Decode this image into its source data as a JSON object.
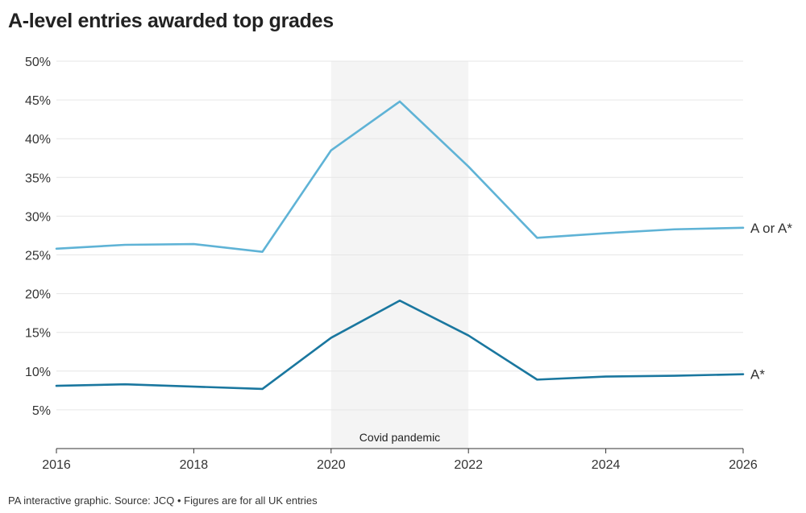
{
  "title": "A-level entries awarded top grades",
  "footer": "PA interactive graphic. Source: JCQ • Figures are for all UK entries",
  "colors": {
    "a_or_astar": "#5fb3d6",
    "astar": "#1a779f",
    "band": "#f4f4f4",
    "grid": "#e6e6e6",
    "axis": "#333333"
  },
  "chart_data": {
    "type": "line",
    "title": "A-level entries awarded top grades",
    "xlabel": "",
    "ylabel": "",
    "x": [
      2016,
      2017,
      2018,
      2019,
      2020,
      2021,
      2022,
      2023,
      2024,
      2025,
      2026
    ],
    "xlim": [
      2016,
      2026
    ],
    "ylim": [
      0,
      50
    ],
    "x_ticks": [
      "2016",
      "2018",
      "2020",
      "2022",
      "2024",
      "2026"
    ],
    "y_ticks": [
      "5%",
      "10%",
      "15%",
      "20%",
      "25%",
      "30%",
      "35%",
      "40%",
      "45%",
      "50%"
    ],
    "grid": true,
    "series": [
      {
        "name": "A or A*",
        "values": [
          25.8,
          26.3,
          26.4,
          25.4,
          38.5,
          44.8,
          36.4,
          27.2,
          27.8,
          28.3,
          28.5
        ]
      },
      {
        "name": "A*",
        "values": [
          8.1,
          8.3,
          8.0,
          7.7,
          14.3,
          19.1,
          14.6,
          8.9,
          9.3,
          9.4,
          9.6
        ]
      }
    ],
    "annotations": [
      {
        "text": "Covid pandemic",
        "x_start": 2020,
        "x_end": 2022
      }
    ]
  }
}
